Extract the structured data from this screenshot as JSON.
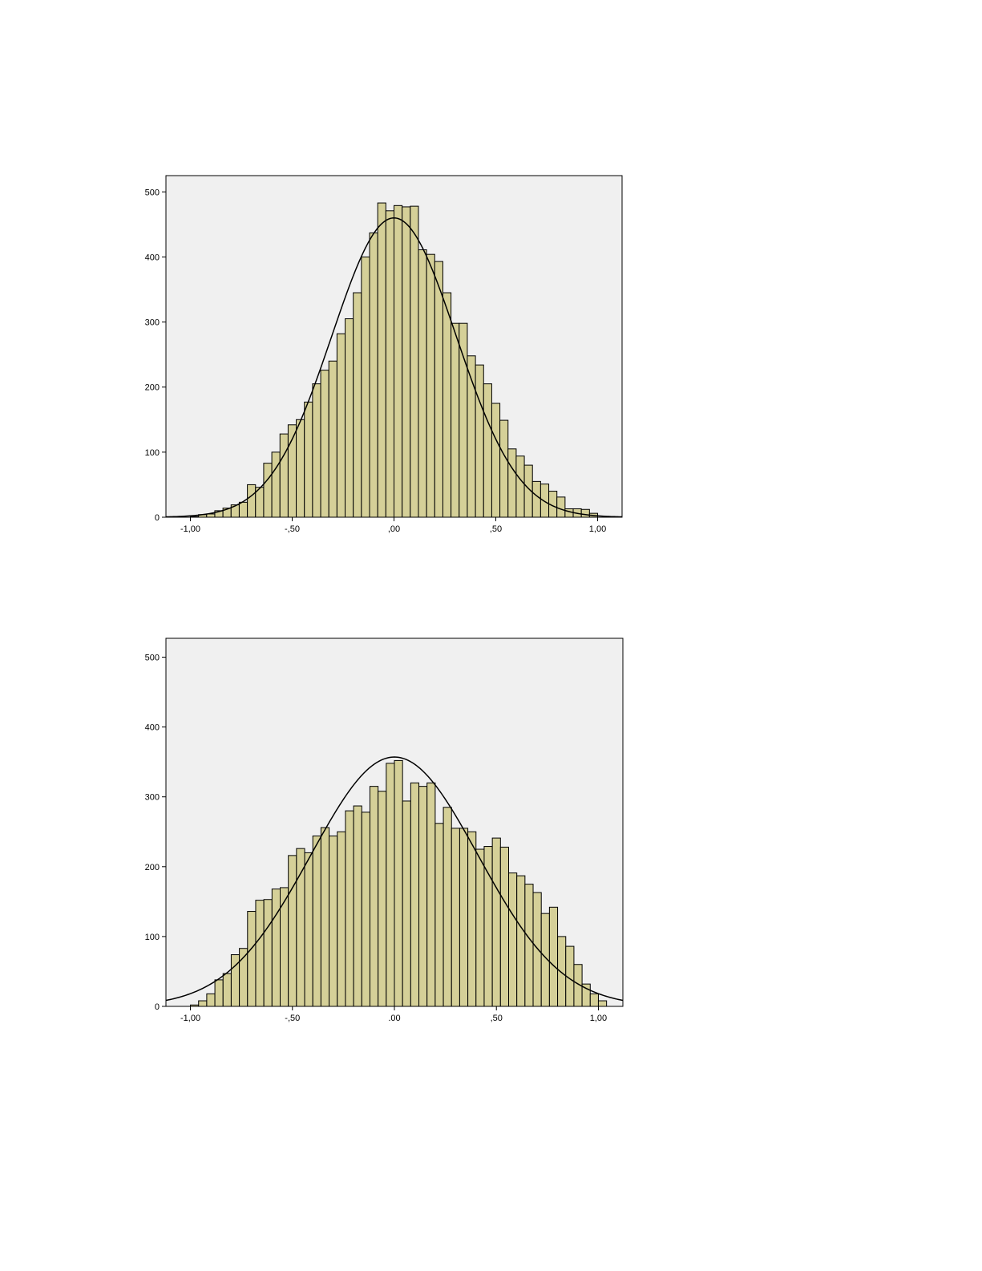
{
  "colors": {
    "bar_fill": "#d5d098",
    "plot_background": "#f0f0f0",
    "line": "#000000"
  },
  "chart_data": [
    {
      "type": "bar",
      "subtype": "histogram",
      "overlay": "normal-curve",
      "xlim": [
        -1.12,
        1.12
      ],
      "ylim": [
        0,
        525
      ],
      "xticks": [
        -1,
        -0.5,
        0,
        0.5,
        1
      ],
      "xtick_labels": [
        "-1,00",
        "-,50",
        ",00",
        ",50",
        "1,00"
      ],
      "yticks": [
        0,
        100,
        200,
        300,
        400,
        500
      ],
      "ytick_labels": [
        "0",
        "100",
        "200",
        "300",
        "400",
        "500"
      ],
      "grid": false,
      "bin_start": -1.0,
      "bin_width": 0.04,
      "values": [
        1,
        4,
        5,
        10,
        14,
        19,
        23,
        50,
        46,
        83,
        100,
        128,
        142,
        150,
        177,
        205,
        226,
        240,
        282,
        305,
        345,
        400,
        437,
        483,
        471,
        479,
        477,
        478,
        411,
        404,
        393,
        345,
        298,
        298,
        248,
        234,
        205,
        175,
        149,
        105,
        94,
        80,
        55,
        51,
        40,
        31,
        13,
        13,
        12,
        6,
        0
      ],
      "curve": {
        "mean": 0.0,
        "sd": 0.305,
        "peak": 460
      }
    },
    {
      "type": "bar",
      "subtype": "histogram",
      "overlay": "normal-curve",
      "xlim": [
        -1.12,
        1.12
      ],
      "ylim": [
        0,
        527
      ],
      "xticks": [
        -1,
        -0.5,
        0,
        0.5,
        1
      ],
      "xtick_labels": [
        "-1,00",
        "-,50",
        ".00",
        ",50",
        "1,00"
      ],
      "yticks": [
        0,
        100,
        200,
        300,
        400,
        500
      ],
      "ytick_labels": [
        "0",
        "100",
        "200",
        "300",
        "400",
        "500"
      ],
      "grid": false,
      "bin_start": -1.0,
      "bin_width": 0.04,
      "values": [
        2,
        8,
        18,
        38,
        47,
        74,
        83,
        136,
        152,
        153,
        168,
        170,
        216,
        226,
        220,
        244,
        256,
        244,
        250,
        280,
        287,
        278,
        315,
        308,
        348,
        352,
        294,
        320,
        315,
        320,
        262,
        285,
        255,
        255,
        250,
        225,
        229,
        241,
        228,
        191,
        187,
        175,
        163,
        133,
        142,
        100,
        86,
        60,
        32,
        18,
        8
      ],
      "curve": {
        "mean": 0.0,
        "sd": 0.41,
        "peak": 357
      }
    }
  ]
}
